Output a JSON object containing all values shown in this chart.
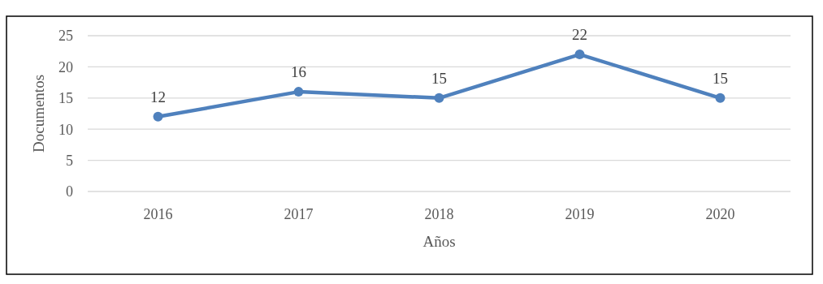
{
  "chart_data": {
    "type": "line",
    "xlabel": "Años",
    "ylabel": "Documentos",
    "categories": [
      "2016",
      "2017",
      "2018",
      "2019",
      "2020"
    ],
    "series": [
      {
        "color": "#4f81bd",
        "values": [
          12,
          16,
          15,
          22,
          15
        ]
      }
    ],
    "ylim": [
      0,
      25
    ],
    "yticks": [
      0,
      5,
      10,
      15,
      20,
      25
    ],
    "grid": "y",
    "marker": "circle",
    "data_labels": true
  }
}
